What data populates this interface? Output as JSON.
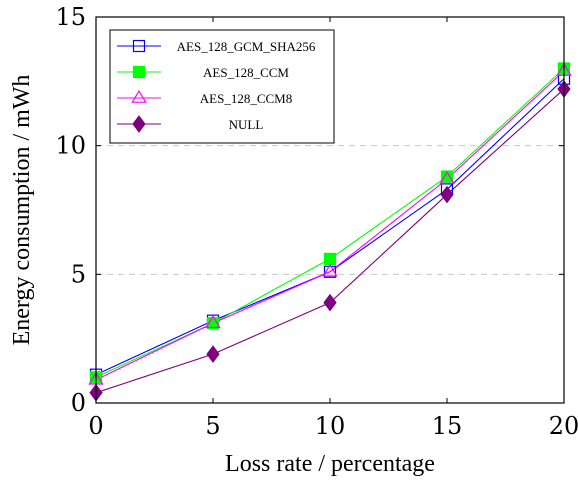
{
  "chart_data": {
    "type": "line",
    "xlabel": "Loss rate / percentage",
    "ylabel": "Energy consumption / mWh",
    "xlim": [
      0,
      20
    ],
    "ylim": [
      0,
      15
    ],
    "x_ticks": [
      "0",
      "5",
      "10",
      "15",
      "20"
    ],
    "y_ticks": [
      "0",
      "5",
      "10",
      "15"
    ],
    "grid": "horizontal dashed at y ticks",
    "legend_position": "top-left",
    "x": [
      0,
      5,
      10,
      15,
      20
    ],
    "series": [
      {
        "name": "AES_128_GCM_SHA256",
        "values": [
          1.1,
          3.2,
          5.1,
          8.3,
          12.6
        ],
        "color": "#0000ff",
        "marker": "square-open"
      },
      {
        "name": "AES_128_CCM",
        "values": [
          1.0,
          3.1,
          5.6,
          8.8,
          13.0
        ],
        "color": "#00ff00",
        "marker": "square-filled"
      },
      {
        "name": "AES_128_CCM8",
        "values": [
          0.9,
          3.1,
          5.1,
          8.7,
          12.9
        ],
        "color": "#ff00ff",
        "marker": "triangle-open"
      },
      {
        "name": "NULL",
        "values": [
          0.4,
          1.9,
          3.9,
          8.1,
          12.2
        ],
        "color": "#7f007f",
        "marker": "diamond-filled"
      }
    ]
  }
}
